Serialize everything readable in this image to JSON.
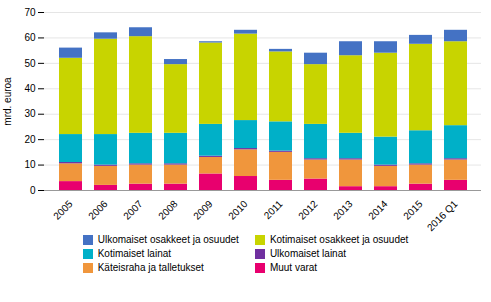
{
  "chart_data": {
    "type": "bar",
    "stacked": true,
    "categories": [
      "2005",
      "2006",
      "2007",
      "2008",
      "2009",
      "2010",
      "2011",
      "2012",
      "2013",
      "2014",
      "2015",
      "2016 Q1"
    ],
    "series": [
      {
        "name": "Muut varat",
        "color": "#e8006e",
        "values": [
          3.5,
          2.0,
          2.5,
          2.5,
          6.5,
          5.5,
          4.0,
          4.5,
          1.5,
          1.5,
          2.5,
          4.0
        ]
      },
      {
        "name": "Käteisraha ja talletukset",
        "color": "#f0963c",
        "values": [
          7.0,
          7.5,
          7.5,
          7.5,
          6.5,
          10.5,
          11.0,
          7.5,
          10.5,
          8.0,
          7.5,
          8.0
        ]
      },
      {
        "name": "Ulkomaiset lainat",
        "color": "#7030a0",
        "values": [
          0.5,
          0.5,
          0.5,
          0.5,
          0.5,
          0.5,
          0.5,
          0.5,
          0.5,
          0.5,
          0.5,
          0.5
        ]
      },
      {
        "name": "Kotimaiset lainat",
        "color": "#00b0c8",
        "values": [
          11.0,
          12.0,
          12.0,
          12.0,
          12.5,
          11.0,
          11.5,
          13.5,
          10.0,
          11.0,
          13.0,
          13.0
        ]
      },
      {
        "name": "Kotimaiset osakkeet ja osuudet",
        "color": "#c8d400",
        "values": [
          30.0,
          37.5,
          38.0,
          27.0,
          32.0,
          34.0,
          27.5,
          23.5,
          30.5,
          33.0,
          34.0,
          33.0
        ]
      },
      {
        "name": "Ulkomaiset osakkeet ja osuudet",
        "color": "#4472c4",
        "values": [
          4.0,
          2.5,
          3.5,
          2.0,
          0.5,
          1.5,
          1.0,
          4.5,
          5.5,
          4.5,
          3.5,
          4.5
        ]
      }
    ],
    "ylabel": "mrd. euroa",
    "ylim": [
      0,
      70
    ],
    "yticks": [
      0,
      10,
      20,
      30,
      40,
      50,
      60,
      70
    ],
    "grid": true,
    "legend": "bottom"
  }
}
